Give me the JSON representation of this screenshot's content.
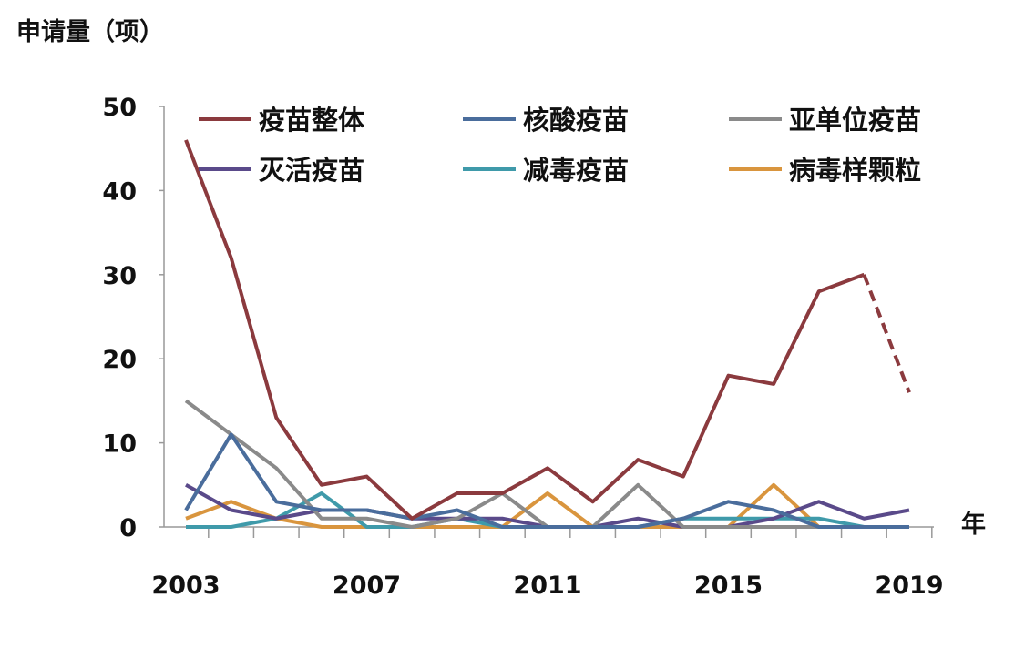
{
  "chart_data": {
    "type": "line",
    "title": "",
    "ylabel": "申请量（项）",
    "xlabel": "年",
    "ylim": [
      0,
      50
    ],
    "yticks": [
      "0",
      "10",
      "20",
      "30",
      "40",
      "50"
    ],
    "xticks": [
      "2003",
      "2007",
      "2011",
      "2015",
      "2019"
    ],
    "x": [
      2003,
      2004,
      2005,
      2006,
      2007,
      2008,
      2009,
      2010,
      2011,
      2012,
      2013,
      2014,
      2015,
      2016,
      2017,
      2018,
      2019
    ],
    "grid": false,
    "legend_position": "top",
    "series": [
      {
        "name": "疫苗整体",
        "color": "#8b3a3e",
        "dashed_last_segment": true,
        "values": [
          46,
          32,
          13,
          5,
          6,
          1,
          4,
          4,
          7,
          3,
          8,
          6,
          18,
          17,
          28,
          30,
          16
        ]
      },
      {
        "name": "核酸疫苗",
        "color": "#4a6d9c",
        "values": [
          2,
          11,
          3,
          2,
          2,
          1,
          2,
          0,
          0,
          0,
          0,
          1,
          3,
          2,
          0,
          0,
          0
        ]
      },
      {
        "name": "亚单位疫苗",
        "color": "#8a8a8a",
        "values": [
          15,
          11,
          7,
          1,
          1,
          0,
          1,
          4,
          0,
          0,
          5,
          0,
          0,
          0,
          0,
          0,
          0
        ]
      },
      {
        "name": "灭活疫苗",
        "color": "#5a4a8a",
        "values": [
          5,
          2,
          1,
          2,
          2,
          1,
          1,
          1,
          0,
          0,
          1,
          0,
          0,
          1,
          3,
          1,
          2
        ]
      },
      {
        "name": "减毒疫苗",
        "color": "#3f9aaa",
        "values": [
          0,
          0,
          1,
          4,
          0,
          0,
          1,
          0,
          0,
          0,
          0,
          1,
          1,
          1,
          1,
          0,
          0
        ]
      },
      {
        "name": "病毒样颗粒",
        "color": "#d9953e",
        "values": [
          1,
          3,
          1,
          0,
          0,
          0,
          0,
          0,
          4,
          0,
          0,
          0,
          0,
          5,
          0,
          0,
          0
        ]
      }
    ]
  }
}
